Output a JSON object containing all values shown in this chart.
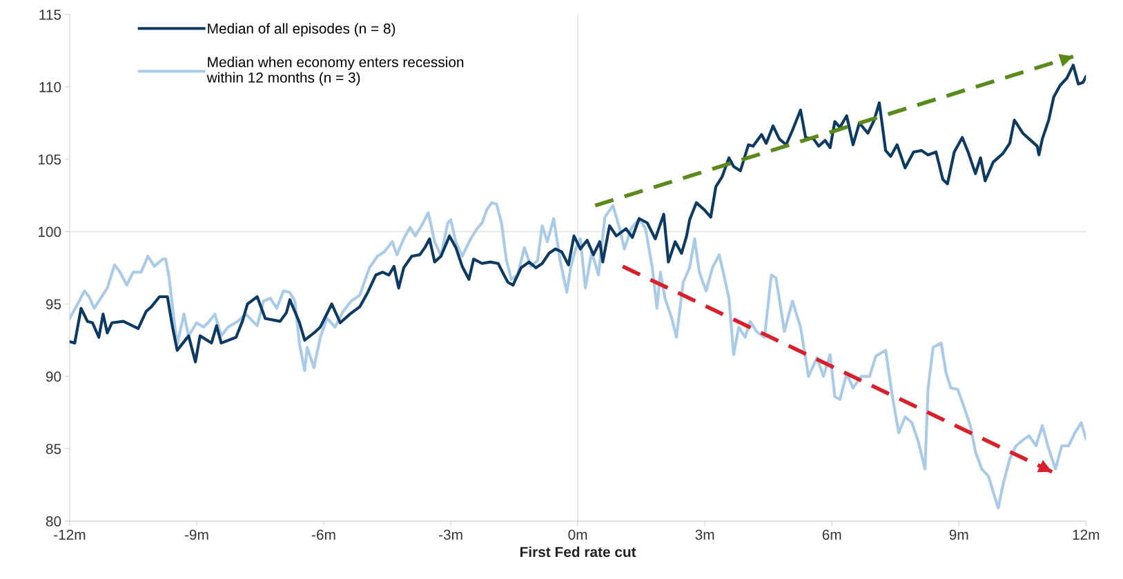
{
  "chart_data": {
    "type": "line",
    "xlabel": "First Fed rate cut",
    "xlim": [
      -12,
      12
    ],
    "ylim": [
      80,
      115
    ],
    "xticks": [
      {
        "value": -12,
        "label": "-12m"
      },
      {
        "value": -9,
        "label": "-9m"
      },
      {
        "value": -6,
        "label": "-6m"
      },
      {
        "value": -3,
        "label": "-3m"
      },
      {
        "value": 0,
        "label": "0m"
      },
      {
        "value": 3,
        "label": "3m"
      },
      {
        "value": 6,
        "label": "6m"
      },
      {
        "value": 9,
        "label": "9m"
      },
      {
        "value": 12,
        "label": "12m"
      }
    ],
    "yticks": [
      80,
      85,
      90,
      95,
      100,
      105,
      110,
      115
    ],
    "grid": false,
    "legend": "top left",
    "ref_lines": [
      {
        "axis": "x",
        "value": 0,
        "color": "#e3e3e3"
      },
      {
        "axis": "y",
        "value": 100,
        "color": "#e3e3e3"
      }
    ],
    "series": [
      {
        "name": "Median when economy enters recession\nwithin 12 months (n = 3)",
        "color": "#a9cbe8",
        "x": [
          -12,
          -11.81,
          -11.65,
          -11.54,
          -11.42,
          -11.31,
          -11.11,
          -10.94,
          -10.81,
          -10.65,
          -10.5,
          -10.31,
          -10.15,
          -10.0,
          -9.8,
          -9.73,
          -9.65,
          -9.53,
          -9.46,
          -9.3,
          -9.19,
          -9.0,
          -8.84,
          -8.73,
          -8.57,
          -8.42,
          -8.26,
          -8.03,
          -7.84,
          -7.57,
          -7.42,
          -7.26,
          -7.11,
          -6.95,
          -6.8,
          -6.68,
          -6.57,
          -6.45,
          -6.39,
          -6.23,
          -6.08,
          -5.92,
          -5.73,
          -5.54,
          -5.35,
          -5.15,
          -4.92,
          -4.73,
          -4.57,
          -4.38,
          -4.27,
          -4.11,
          -3.96,
          -3.84,
          -3.69,
          -3.53,
          -3.38,
          -3.23,
          -3.07,
          -3.0,
          -2.88,
          -2.73,
          -2.53,
          -2.38,
          -2.26,
          -2.15,
          -2.03,
          -1.92,
          -1.8,
          -1.69,
          -1.57,
          -1.42,
          -1.26,
          -1.11,
          -0.95,
          -0.84,
          -0.72,
          -0.57,
          -0.41,
          -0.26,
          -0.17,
          -0.05,
          0.06,
          0.18,
          0.33,
          0.49,
          0.64,
          0.83,
          0.99,
          1.1,
          1.26,
          1.45,
          1.6,
          1.76,
          1.87,
          1.95,
          2.06,
          2.22,
          2.33,
          2.49,
          2.64,
          2.76,
          2.87,
          3.03,
          3.18,
          3.34,
          3.45,
          3.57,
          3.68,
          3.8,
          3.95,
          4.07,
          4.22,
          4.41,
          4.57,
          4.68,
          4.88,
          5.07,
          5.26,
          5.45,
          5.65,
          5.8,
          5.96,
          6.07,
          6.19,
          6.35,
          6.5,
          6.69,
          6.89,
          7.04,
          7.27,
          7.43,
          7.58,
          7.73,
          7.89,
          8.04,
          8.2,
          8.27,
          8.39,
          8.58,
          8.7,
          8.81,
          8.97,
          9.12,
          9.27,
          9.39,
          9.54,
          9.7,
          9.81,
          9.93,
          10.04,
          10.2,
          10.35,
          10.51,
          10.66,
          10.82,
          10.97,
          11.12,
          11.28,
          11.43,
          11.59,
          11.74,
          11.89,
          12.0
        ],
        "values": [
          94.0,
          95.0,
          95.9,
          95.5,
          94.7,
          95.2,
          96.1,
          97.7,
          97.2,
          96.3,
          97.2,
          97.2,
          98.3,
          97.6,
          98.1,
          98.1,
          96.8,
          93.8,
          92.2,
          94.3,
          92.8,
          93.7,
          93.4,
          93.7,
          94.3,
          92.8,
          93.4,
          93.8,
          94.3,
          93.5,
          95.2,
          95.4,
          94.7,
          95.9,
          95.8,
          95.2,
          92.2,
          90.4,
          92.0,
          90.6,
          92.7,
          94.0,
          93.4,
          94.5,
          95.2,
          95.6,
          97.5,
          98.3,
          98.6,
          99.3,
          98.4,
          99.5,
          100.3,
          99.7,
          100.4,
          101.3,
          99.3,
          98.3,
          100.6,
          100.8,
          99.3,
          98.3,
          99.5,
          100.2,
          100.6,
          101.5,
          102.0,
          101.9,
          100.6,
          98.1,
          96.7,
          97.0,
          98.9,
          97.6,
          98.0,
          100.4,
          99.3,
          100.9,
          97.9,
          95.8,
          97.5,
          98.8,
          99.5,
          96.1,
          98.6,
          97.0,
          101.0,
          101.8,
          100.2,
          98.8,
          100.2,
          100.9,
          100.2,
          97.5,
          94.7,
          97.2,
          95.4,
          94.0,
          92.7,
          96.5,
          97.5,
          99.5,
          97.2,
          95.9,
          97.5,
          98.4,
          97.0,
          95.4,
          91.5,
          93.4,
          92.7,
          93.8,
          93.1,
          92.7,
          97.0,
          96.8,
          93.1,
          95.2,
          93.4,
          90.0,
          91.3,
          90.0,
          91.5,
          88.6,
          88.4,
          90.2,
          89.2,
          90.0,
          90.0,
          91.4,
          91.8,
          88.6,
          86.1,
          87.2,
          86.8,
          85.5,
          83.6,
          89.1,
          92.0,
          92.3,
          90.2,
          89.2,
          89.1,
          87.9,
          86.6,
          84.8,
          83.6,
          83.1,
          82.0,
          80.9,
          82.5,
          84.3,
          85.2,
          85.6,
          85.9,
          85.2,
          86.6,
          85.0,
          83.6,
          85.2,
          85.2,
          86.1,
          86.8,
          85.7
        ]
      },
      {
        "name": "Median of all episodes (n = 8)",
        "color": "#0d3a63",
        "x": [
          -12,
          -11.88,
          -11.73,
          -11.58,
          -11.46,
          -11.31,
          -11.21,
          -11.11,
          -11.0,
          -10.73,
          -10.38,
          -10.19,
          -10.07,
          -9.88,
          -9.69,
          -9.57,
          -9.46,
          -9.19,
          -9.03,
          -8.92,
          -8.65,
          -8.53,
          -8.42,
          -8.07,
          -7.92,
          -7.8,
          -7.57,
          -7.38,
          -7.03,
          -6.88,
          -6.8,
          -6.57,
          -6.45,
          -6.23,
          -6.08,
          -5.81,
          -5.61,
          -5.38,
          -5.15,
          -4.96,
          -4.77,
          -4.61,
          -4.46,
          -4.34,
          -4.23,
          -4.11,
          -3.92,
          -3.73,
          -3.61,
          -3.5,
          -3.38,
          -3.23,
          -3.03,
          -2.88,
          -2.73,
          -2.57,
          -2.46,
          -2.26,
          -2.07,
          -1.88,
          -1.76,
          -1.65,
          -1.53,
          -1.34,
          -1.15,
          -0.99,
          -0.84,
          -0.68,
          -0.53,
          -0.38,
          -0.22,
          -0.09,
          0.06,
          0.22,
          0.37,
          0.52,
          0.59,
          0.75,
          0.91,
          1.14,
          1.29,
          1.45,
          1.64,
          1.83,
          2.03,
          2.14,
          2.3,
          2.45,
          2.57,
          2.64,
          2.8,
          2.99,
          3.14,
          3.26,
          3.41,
          3.57,
          3.68,
          3.84,
          4.03,
          4.14,
          4.34,
          4.45,
          4.61,
          4.76,
          4.92,
          5.07,
          5.26,
          5.38,
          5.57,
          5.69,
          5.84,
          5.96,
          6.07,
          6.19,
          6.35,
          6.5,
          6.65,
          6.85,
          7.0,
          7.12,
          7.27,
          7.39,
          7.54,
          7.73,
          7.93,
          8.12,
          8.27,
          8.46,
          8.62,
          8.73,
          8.89,
          9.08,
          9.23,
          9.39,
          9.51,
          9.62,
          9.81,
          10.04,
          10.2,
          10.31,
          10.51,
          10.66,
          10.85,
          10.89,
          10.97,
          11.12,
          11.24,
          11.39,
          11.55,
          11.7,
          11.82,
          11.93,
          12.0
        ],
        "values": [
          92.4,
          92.3,
          94.7,
          93.8,
          93.7,
          92.7,
          94.3,
          93.0,
          93.7,
          93.8,
          93.3,
          94.5,
          94.8,
          95.5,
          95.5,
          93.4,
          91.8,
          92.8,
          91.0,
          92.8,
          92.3,
          93.5,
          92.3,
          92.7,
          93.8,
          95.0,
          95.5,
          94.0,
          93.8,
          94.4,
          95.3,
          93.7,
          92.5,
          93.0,
          93.4,
          95.0,
          93.7,
          94.3,
          94.8,
          95.8,
          97.0,
          97.2,
          97.0,
          97.6,
          96.1,
          97.5,
          98.3,
          98.4,
          98.9,
          99.5,
          97.9,
          98.3,
          99.7,
          98.9,
          97.6,
          96.7,
          98.1,
          97.8,
          97.9,
          97.8,
          97.1,
          96.5,
          96.3,
          97.5,
          97.9,
          97.5,
          97.8,
          98.5,
          98.8,
          98.6,
          97.7,
          99.7,
          98.8,
          99.4,
          98.4,
          99.3,
          97.9,
          100.4,
          99.7,
          100.2,
          99.6,
          100.9,
          100.6,
          99.5,
          101.2,
          97.9,
          99.3,
          98.5,
          99.7,
          100.8,
          102.0,
          101.5,
          101.0,
          103.1,
          103.8,
          105.1,
          104.5,
          104.2,
          106.0,
          105.9,
          106.7,
          106.1,
          107.3,
          106.4,
          106.0,
          107.0,
          108.4,
          106.5,
          106.4,
          105.9,
          106.3,
          105.8,
          107.6,
          107.2,
          108.0,
          106.0,
          107.5,
          106.8,
          107.7,
          108.9,
          105.6,
          105.2,
          106.0,
          104.4,
          105.5,
          105.6,
          105.3,
          105.5,
          103.6,
          103.3,
          105.5,
          106.5,
          105.4,
          104.0,
          105.1,
          103.5,
          104.8,
          105.4,
          106.1,
          107.7,
          106.8,
          106.4,
          105.9,
          105.3,
          106.4,
          107.7,
          109.3,
          110.1,
          110.6,
          111.5,
          110.2,
          110.3,
          110.7
        ]
      },
      {
        "color": "#5a8a1a",
        "line_style": "dashed",
        "x": [
          0.41,
          11.7
        ],
        "values": [
          101.8,
          112.1
        ]
      },
      {
        "color": "#d9202a",
        "line_style": "dashed",
        "x": [
          1.06,
          11.2
        ],
        "values": [
          97.6,
          83.4
        ]
      }
    ]
  }
}
